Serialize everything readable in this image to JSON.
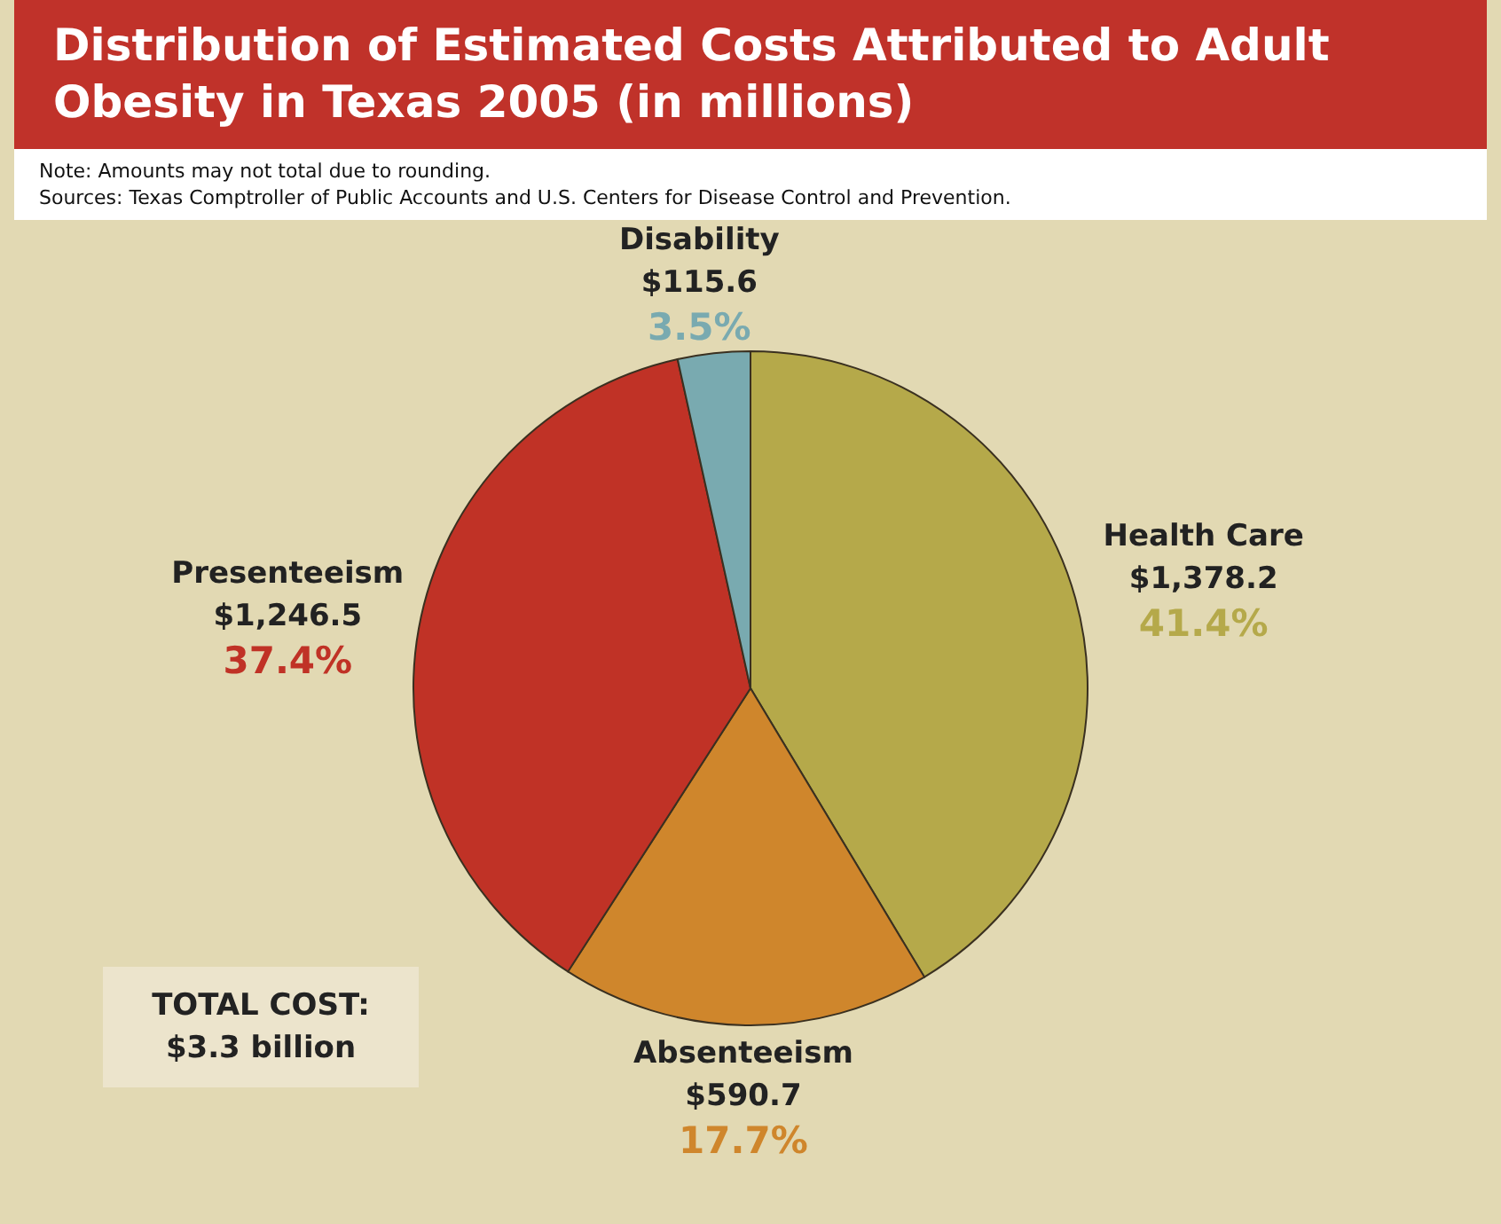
{
  "chart_data": {
    "type": "pie",
    "title": "Distribution of Estimated Costs Attributed to Adult Obesity in Texas 2005 (in millions)",
    "subtitle": "Note: Amounts may not total due to rounding.",
    "categories": [
      "Health Care",
      "Absenteeism",
      "Presenteeism",
      "Disability"
    ],
    "values": [
      1378.2,
      590.7,
      1246.5,
      115.6
    ],
    "colors": [
      "#b5a94a",
      "#cf862c",
      "#c03226",
      "#79aab0"
    ],
    "value_labels": [
      "$1,378.2",
      "$590.7",
      "$1,246.5",
      "$115.6"
    ],
    "annotations": [
      "Sources: Texas Comptroller of Public Accounts and U.S. Centers for Disease Control and Prevention.",
      "TOTAL COST: $3.3 billion",
      {
        "text": "41.4%",
        "x": "Health Care"
      },
      {
        "text": "17.7%",
        "x": "Absenteeism"
      },
      {
        "text": "37.4%",
        "x": "Presenteeism"
      },
      {
        "text": "3.5%",
        "x": "Disability"
      }
    ]
  }
}
